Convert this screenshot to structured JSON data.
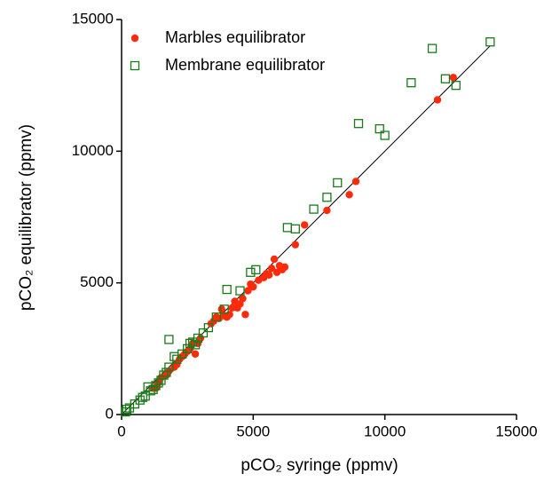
{
  "chart_data": {
    "type": "scatter",
    "xlabel": "pCO₂ syringe (ppmv)",
    "ylabel": "pCO₂ equilibrator (ppmv)",
    "xlim": [
      0,
      15000
    ],
    "ylim": [
      0,
      15000
    ],
    "xticks": [
      0,
      5000,
      10000,
      15000
    ],
    "yticks": [
      0,
      5000,
      10000,
      15000
    ],
    "legend": "upper left",
    "reference_line": {
      "x": [
        0,
        14000
      ],
      "y": [
        0,
        14000
      ],
      "color": "#000000"
    },
    "series": [
      {
        "name": "Marbles equilibrator",
        "color": "#ff2a0a",
        "marker": "circle",
        "x": [
          12600,
          12000,
          8900,
          8650,
          7800,
          6950,
          6600,
          6200,
          6100,
          6000,
          5900,
          5800,
          5700,
          5600,
          5500,
          5400,
          5200,
          5000,
          4900,
          4800,
          4700,
          4600,
          4500,
          4400,
          4300,
          4200,
          4100,
          4000,
          3900,
          3800,
          3700,
          3600,
          3500,
          3400,
          3000,
          2900,
          2800,
          2700,
          2600,
          2500,
          2400,
          2300,
          2200,
          2100,
          2000,
          1800,
          1700,
          1500,
          1400,
          1300,
          1200
        ],
        "y": [
          12800,
          11950,
          8850,
          8350,
          7750,
          7200,
          6450,
          5600,
          5500,
          5650,
          5400,
          5900,
          5550,
          5300,
          5350,
          5200,
          5100,
          4850,
          4950,
          4700,
          3800,
          4400,
          4200,
          4050,
          4300,
          4050,
          3800,
          3700,
          3750,
          4000,
          3650,
          3700,
          3550,
          3450,
          2900,
          2700,
          2300,
          2700,
          2500,
          2400,
          2300,
          2200,
          2100,
          1900,
          1800,
          1650,
          1500,
          1400,
          1200,
          1000,
          1000
        ]
      },
      {
        "name": "Membrane equilibrator",
        "color": "#1a7a1a",
        "marker": "square",
        "x": [
          14000,
          12700,
          12300,
          11800,
          11000,
          10000,
          9800,
          9000,
          8200,
          7800,
          7300,
          6600,
          6300,
          5100,
          4900,
          4500,
          4000,
          3900,
          3600,
          3300,
          3100,
          2900,
          2800,
          2700,
          2600,
          2500,
          2300,
          2100,
          2000,
          1800,
          1800,
          1700,
          1600,
          1500,
          1400,
          1300,
          1200,
          1100,
          1000,
          900,
          800,
          700,
          500,
          300,
          200,
          150
        ],
        "y": [
          14150,
          12500,
          12750,
          13900,
          12600,
          10600,
          10850,
          11050,
          8800,
          8250,
          7800,
          7050,
          7100,
          5500,
          5400,
          4700,
          4750,
          4000,
          3700,
          3300,
          3100,
          2900,
          2650,
          2750,
          2700,
          2500,
          2300,
          2100,
          2200,
          2850,
          1800,
          1600,
          1500,
          1300,
          1200,
          1100,
          950,
          900,
          1050,
          700,
          650,
          550,
          400,
          250,
          200,
          100
        ]
      }
    ]
  }
}
